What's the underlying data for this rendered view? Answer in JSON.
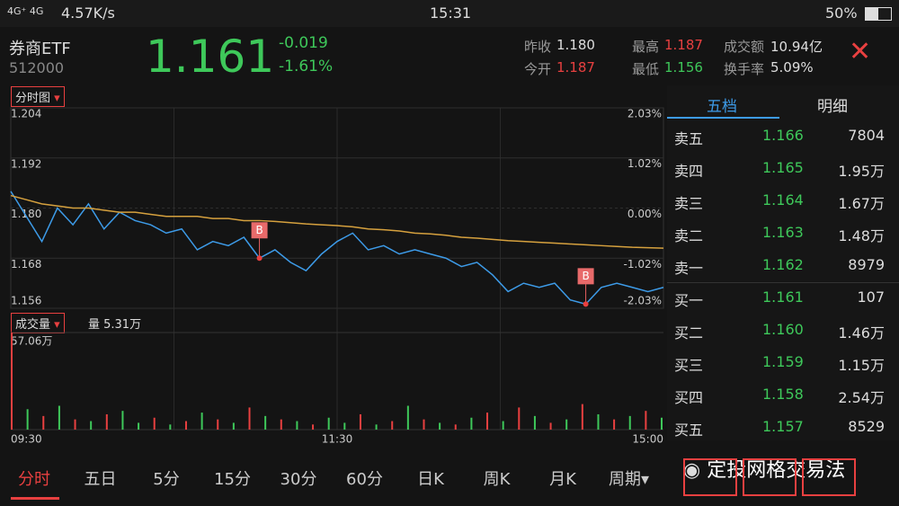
{
  "status_bar": {
    "speed": "4.57K/s",
    "time": "15:31",
    "battery": "50%"
  },
  "header": {
    "name": "券商ETF",
    "code": "512000",
    "price": "1.161",
    "change": "-0.019",
    "change_pct": "-1.61%",
    "stats": [
      {
        "label": "昨收",
        "value": "1.180"
      },
      {
        "label": "今开",
        "value": "1.187"
      },
      {
        "label": "最高",
        "value": "1.187"
      },
      {
        "label": "最低",
        "value": "1.156"
      },
      {
        "label": "成交额",
        "value": "10.94亿"
      },
      {
        "label": "换手率",
        "value": "5.09%"
      }
    ]
  },
  "chart_data": [
    {
      "type": "line",
      "selector": "分时图",
      "yticks": [
        1.204,
        1.192,
        {
          "value": 1.18,
          "label": "1.180"
        },
        1.168,
        1.156
      ],
      "ylim": [
        1.156,
        1.204
      ],
      "y2ticks": [
        {
          "value": 2.03,
          "label": "2.03%"
        },
        {
          "value": 1.02,
          "label": "1.02%"
        },
        {
          "value": 0,
          "label": "0.00%"
        },
        {
          "value": -1.02,
          "label": "-1.02%"
        },
        {
          "value": -2.03,
          "label": "-2.03%"
        }
      ],
      "y2lim": [
        -2.03,
        2.03
      ],
      "xticks": [
        "09:30",
        "11:30",
        "15:00"
      ],
      "series": [
        {
          "color": "#3d9be8",
          "values": [
            1.184,
            1.178,
            1.172,
            1.18,
            1.176,
            1.181,
            1.175,
            1.179,
            1.177,
            1.176,
            1.174,
            1.175,
            1.17,
            1.172,
            1.171,
            1.173,
            1.168,
            1.17,
            1.167,
            1.165,
            1.169,
            1.172,
            1.174,
            1.17,
            1.171,
            1.169,
            1.17,
            1.169,
            1.168,
            1.166,
            1.167,
            1.164,
            1.16,
            1.162,
            1.161,
            1.162,
            1.158,
            1.157,
            1.161,
            1.162,
            1.161,
            1.16,
            1.161
          ]
        },
        {
          "color": "#d6a13e",
          "values": [
            1.183,
            1.182,
            1.181,
            1.1805,
            1.18,
            1.18,
            1.1795,
            1.179,
            1.179,
            1.1785,
            1.178,
            1.178,
            1.178,
            1.1775,
            1.1775,
            1.177,
            1.177,
            1.1768,
            1.1765,
            1.1762,
            1.176,
            1.1758,
            1.1755,
            1.175,
            1.1748,
            1.1745,
            1.174,
            1.1738,
            1.1735,
            1.173,
            1.1728,
            1.1725,
            1.1722,
            1.172,
            1.1718,
            1.1716,
            1.1714,
            1.1712,
            1.171,
            1.1708,
            1.1706,
            1.1705,
            1.1704
          ]
        }
      ],
      "markers": [
        {
          "label": "B",
          "index": 16,
          "value": 1.168
        },
        {
          "label": "B",
          "index": 37,
          "value": 1.157
        }
      ]
    },
    {
      "type": "bar",
      "selector": "成交量",
      "summary": "量 5.31万",
      "ylim": [
        0,
        57.06
      ],
      "yticks": [
        {
          "value": 57.06,
          "label": "57.06万"
        }
      ],
      "values": [
        57.06,
        12,
        8,
        14,
        6,
        5,
        9,
        11,
        4,
        7,
        3,
        5,
        10,
        6,
        4,
        13,
        8,
        6,
        5,
        3,
        7,
        4,
        9,
        3,
        5,
        14,
        6,
        4,
        3,
        7,
        10,
        5,
        13,
        8,
        4,
        6,
        15,
        9,
        6,
        8,
        11,
        7
      ],
      "colors": [
        "#e84040",
        "#3ec85a",
        "#e84040",
        "#3ec85a",
        "#e84040",
        "#3ec85a",
        "#e84040",
        "#3ec85a",
        "#3ec85a",
        "#e84040",
        "#3ec85a",
        "#e84040",
        "#3ec85a",
        "#e84040",
        "#3ec85a",
        "#e84040",
        "#3ec85a",
        "#e84040",
        "#3ec85a",
        "#e84040",
        "#3ec85a",
        "#3ec85a",
        "#e84040",
        "#3ec85a",
        "#e84040",
        "#3ec85a",
        "#e84040",
        "#3ec85a",
        "#e84040",
        "#3ec85a",
        "#e84040",
        "#3ec85a",
        "#e84040",
        "#3ec85a",
        "#e84040",
        "#3ec85a",
        "#e84040",
        "#3ec85a",
        "#e84040",
        "#3ec85a",
        "#e84040",
        "#3ec85a"
      ]
    }
  ],
  "order_book": {
    "tabs": [
      "五档",
      "明细"
    ],
    "rows": [
      [
        "卖五",
        "1.166",
        "7804"
      ],
      [
        "卖四",
        "1.165",
        "1.95万"
      ],
      [
        "卖三",
        "1.164",
        "1.67万"
      ],
      [
        "卖二",
        "1.163",
        "1.48万"
      ],
      [
        "卖一",
        "1.162",
        "8979"
      ],
      [
        "买一",
        "1.161",
        "107"
      ],
      [
        "买二",
        "1.160",
        "1.46万"
      ],
      [
        "买三",
        "1.159",
        "1.15万"
      ],
      [
        "买四",
        "1.158",
        "2.54万"
      ],
      [
        "买五",
        "1.157",
        "8529"
      ]
    ]
  },
  "period_tabs": [
    "分时",
    "五日",
    "5分",
    "15分",
    "30分",
    "60分",
    "日K",
    "周K",
    "月K",
    "周期▾"
  ],
  "watermark": "定投网格交易法"
}
